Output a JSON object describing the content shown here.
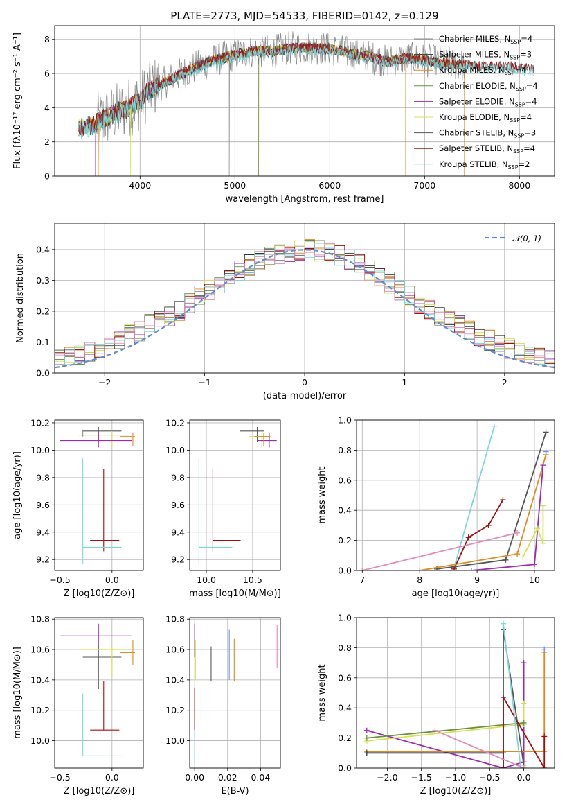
{
  "sup_title": "PLATE=2773, MJD=54533, FIBERID=0142, z=0.129",
  "colors": {
    "Chabrier MILES": "#8c8c8c",
    "Salpeter MILES": "#333333",
    "Kroupa MILES": "#e08a1e",
    "Chabrier ELODIE": "#6a8f3c",
    "Salpeter ELODIE": "#9c2ab0",
    "Kroupa ELODIE": "#d6e050",
    "Chabrier STELIB": "#555555",
    "Salpeter STELIB": "#a01010",
    "Kroupa STELIB": "#7ad8dc",
    "normal": "#5b8bd9",
    "extra_pink": "#e58ab8",
    "extra_blue": "#6f8fe6"
  },
  "chart_data": [
    {
      "id": "spectrum",
      "type": "line",
      "title": "PLATE=2773, MJD=54533, FIBERID=0142, z=0.129",
      "xlabel": "wavelength [Angstrom, rest frame]",
      "ylabel": "Flux [fλ10⁻¹⁷ erg cm⁻² s⁻¹ A⁻¹]",
      "xlim": [
        3100,
        8370
      ],
      "ylim": [
        0,
        8.8
      ],
      "xticks": [
        4000,
        5000,
        6000,
        7000,
        8000
      ],
      "yticks": [
        0,
        2,
        4,
        6,
        8
      ],
      "grid": true,
      "legend_position": "right",
      "legend": [
        "Chabrier MILES, N_SSP=4",
        "Salpeter MILES, N_SSP=3",
        "Kroupa MILES, N_SSP=4",
        "Chabrier ELODIE, N_SSP=4",
        "Salpeter ELODIE, N_SSP=4",
        "Kroupa ELODIE, N_SSP=4",
        "Chabrier STELIB, N_SSP=3",
        "Salpeter STELIB, N_SSP=4",
        "Kroupa STELIB, N_SSP=2"
      ],
      "continuum": [
        [
          3350,
          2.8
        ],
        [
          3500,
          3.0
        ],
        [
          3600,
          3.3
        ],
        [
          3700,
          3.6
        ],
        [
          3800,
          3.8
        ],
        [
          3900,
          4.1
        ],
        [
          4000,
          4.4
        ],
        [
          4100,
          5.1
        ],
        [
          4200,
          5.3
        ],
        [
          4300,
          5.6
        ],
        [
          4400,
          5.9
        ],
        [
          4600,
          6.4
        ],
        [
          4800,
          6.8
        ],
        [
          5000,
          7.1
        ],
        [
          5200,
          7.3
        ],
        [
          5400,
          7.3
        ],
        [
          5600,
          7.5
        ],
        [
          5800,
          7.5
        ],
        [
          6000,
          7.45
        ],
        [
          6200,
          7.2
        ],
        [
          6400,
          7.0
        ],
        [
          6600,
          6.7
        ],
        [
          6800,
          6.9
        ],
        [
          7000,
          6.8
        ],
        [
          7200,
          6.6
        ],
        [
          7400,
          6.5
        ],
        [
          7600,
          6.45
        ],
        [
          7800,
          6.45
        ],
        [
          8000,
          6.3
        ],
        [
          8150,
          6.3
        ]
      ],
      "dips": [
        [
          3530,
          "Salpeter ELODIE"
        ],
        [
          3560,
          "Kroupa MILES"
        ],
        [
          3600,
          "Chabrier MILES"
        ],
        [
          3900,
          "Kroupa ELODIE"
        ],
        [
          4940,
          "Chabrier MILES"
        ],
        [
          5250,
          "Chabrier ELODIE"
        ],
        [
          6800,
          "Kroupa MILES"
        ],
        [
          7420,
          "Kroupa MILES"
        ]
      ]
    },
    {
      "id": "residuals",
      "type": "line",
      "xlabel": "(data-model)/error",
      "ylabel": "Normed distribution",
      "xlim": [
        -2.5,
        2.5
      ],
      "ylim": [
        0,
        0.485
      ],
      "xticks": [
        -2,
        -1,
        0,
        1,
        2
      ],
      "yticks": [
        0.0,
        0.1,
        0.2,
        0.3,
        0.4
      ],
      "grid": true,
      "legend_position": "top-right",
      "legend": [
        "𝒩(0, 1)"
      ],
      "bin_width": 0.1
    },
    {
      "id": "age_vs_Z",
      "type": "scatter",
      "xlabel": "Z [log10(Z/Z⊙)]",
      "ylabel": "age  [log10(age/yr)]",
      "xlim": [
        -0.55,
        0.3
      ],
      "ylim": [
        9.12,
        10.22
      ],
      "xticks": [
        -0.5,
        0.0
      ],
      "yticks": [
        9.2,
        9.4,
        9.6,
        9.8,
        10.0,
        10.2
      ],
      "grid": true,
      "points": [
        {
          "model": "Chabrier STELIB",
          "x": -0.13,
          "xerr": [
            0.15,
            0.22
          ],
          "y": 10.14,
          "yerr": [
            0.08,
            0.03
          ]
        },
        {
          "model": "Kroupa ELODIE",
          "x": 0.0,
          "xerr": [
            0.32,
            0.17
          ],
          "y": 10.11,
          "yerr": [
            0.08,
            0.03
          ]
        },
        {
          "model": "Salpeter ELODIE",
          "x": -0.13,
          "xerr": [
            0.37,
            0.32
          ],
          "y": 10.07,
          "yerr": [
            0.05,
            0.06
          ]
        },
        {
          "model": "Kroupa MILES",
          "x": 0.2,
          "xerr": [
            0.12,
            0.02
          ],
          "y": 10.1,
          "yerr": [
            0.07,
            0.03
          ]
        },
        {
          "model": "Salpeter STELIB",
          "x": -0.08,
          "xerr": [
            0.13,
            0.15
          ],
          "y": 9.34,
          "yerr": [
            0.08,
            0.52
          ]
        },
        {
          "model": "Kroupa STELIB",
          "x": -0.28,
          "xerr": [
            0.0,
            0.37
          ],
          "y": 9.29,
          "yerr": [
            0.12,
            0.65
          ]
        },
        {
          "model": "Chabrier MILES",
          "x": -0.28,
          "xerr": [
            0.0,
            0.0
          ],
          "y": 10.15,
          "yerr": [
            0.05,
            0.0
          ]
        }
      ]
    },
    {
      "id": "age_vs_mass",
      "type": "scatter",
      "xlabel": "mass [log10(M/M⊙)]",
      "xlim": [
        9.82,
        10.8
      ],
      "ylim": [
        9.12,
        10.22
      ],
      "xticks": [
        10.0,
        10.5
      ],
      "yticks": [
        9.2,
        9.4,
        9.6,
        9.8,
        10.0,
        10.2
      ],
      "grid": true,
      "points": [
        {
          "model": "Chabrier STELIB",
          "x": 10.55,
          "xerr": [
            0.19,
            0.07
          ],
          "y": 10.14,
          "yerr": [
            0.08,
            0.03
          ]
        },
        {
          "model": "Kroupa ELODIE",
          "x": 10.6,
          "xerr": [
            0.14,
            0.1
          ],
          "y": 10.1,
          "yerr": [
            0.08,
            0.03
          ]
        },
        {
          "model": "Salpeter ELODIE",
          "x": 10.68,
          "xerr": [
            0.12,
            0.08
          ],
          "y": 10.07,
          "yerr": [
            0.05,
            0.06
          ]
        },
        {
          "model": "Kroupa MILES",
          "x": 10.62,
          "xerr": [
            0.1,
            0.07
          ],
          "y": 10.1,
          "yerr": [
            0.07,
            0.03
          ]
        },
        {
          "model": "Salpeter STELIB",
          "x": 10.07,
          "xerr": [
            0.0,
            0.3
          ],
          "y": 9.34,
          "yerr": [
            0.08,
            0.52
          ]
        },
        {
          "model": "Kroupa STELIB",
          "x": 9.92,
          "xerr": [
            0.0,
            0.36
          ],
          "y": 9.29,
          "yerr": [
            0.12,
            0.65
          ]
        }
      ]
    },
    {
      "id": "mass_weight_vs_age",
      "type": "line",
      "xlabel": "age  [log10(age/yr)]",
      "ylabel": "mass weight",
      "xlim": [
        6.9,
        10.35
      ],
      "ylim": [
        0,
        1.0
      ],
      "xticks": [
        7,
        8,
        9,
        10
      ],
      "yticks": [
        0.0,
        0.2,
        0.4,
        0.6,
        0.8,
        1.0
      ],
      "grid": true,
      "series": [
        {
          "model": "Kroupa STELIB",
          "x": [
            8.6,
            9.3
          ],
          "y": [
            0.02,
            0.96
          ]
        },
        {
          "model": "Salpeter STELIB",
          "x": [
            8.6,
            8.85,
            9.2,
            9.45
          ],
          "y": [
            0.01,
            0.22,
            0.3,
            0.47
          ]
        },
        {
          "model": "Chabrier STELIB",
          "x": [
            8.3,
            9.5,
            10.2
          ],
          "y": [
            0.01,
            0.07,
            0.92
          ]
        },
        {
          "model": "Kroupa MILES",
          "x": [
            8.0,
            9.7,
            10.2
          ],
          "y": [
            0.0,
            0.11,
            0.77
          ]
        },
        {
          "model": "Salpeter ELODIE",
          "x": [
            8.9,
            10.0,
            10.15
          ],
          "y": [
            0.0,
            0.04,
            0.7
          ]
        },
        {
          "model": "Kroupa ELODIE",
          "x": [
            9.8,
            10.05,
            10.15,
            10.15
          ],
          "y": [
            0.09,
            0.28,
            0.18,
            0.43
          ]
        },
        {
          "model": "extra_pink",
          "x": [
            7.0,
            9.7
          ],
          "y": [
            0.0,
            0.25
          ]
        },
        {
          "model": "extra_blue",
          "x": [
            10.2
          ],
          "y": [
            0.79
          ]
        }
      ]
    },
    {
      "id": "mass_vs_Z",
      "type": "scatter",
      "xlabel": "Z [log10(Z/Z⊙)]",
      "ylabel": "mass [log10(M/M⊙)]",
      "xlim": [
        -0.55,
        0.3
      ],
      "ylim": [
        9.82,
        10.81
      ],
      "xticks": [
        -0.5,
        0.0
      ],
      "yticks": [
        10.0,
        10.2,
        10.4,
        10.6,
        10.8
      ],
      "grid": true,
      "points": [
        {
          "model": "Salpeter ELODIE",
          "x": -0.13,
          "xerr": [
            0.37,
            0.32
          ],
          "y": 10.69,
          "yerr": [
            0.08,
            0.08
          ]
        },
        {
          "model": "Chabrier STELIB",
          "x": -0.13,
          "xerr": [
            0.15,
            0.22
          ],
          "y": 10.55,
          "yerr": [
            0.21,
            0.07
          ]
        },
        {
          "model": "Kroupa ELODIE",
          "x": 0.0,
          "xerr": [
            0.32,
            0.17
          ],
          "y": 10.6,
          "yerr": [
            0.18,
            0.02
          ]
        },
        {
          "model": "Kroupa MILES",
          "x": 0.2,
          "xerr": [
            0.12,
            0.02
          ],
          "y": 10.58,
          "yerr": [
            0.08,
            0.08
          ]
        },
        {
          "model": "Salpeter STELIB",
          "x": -0.08,
          "xerr": [
            0.13,
            0.15
          ],
          "y": 10.07,
          "yerr": [
            0.0,
            0.32
          ]
        },
        {
          "model": "Kroupa STELIB",
          "x": -0.28,
          "xerr": [
            0.0,
            0.37
          ],
          "y": 9.9,
          "yerr": [
            0.0,
            0.41
          ]
        }
      ]
    },
    {
      "id": "mass_vs_ebv",
      "type": "scatter",
      "xlabel": "E(B-V)",
      "xlim": [
        -0.003,
        0.052
      ],
      "ylim": [
        9.82,
        10.81
      ],
      "xticks": [
        0.0,
        0.02,
        0.04
      ],
      "yticks": [
        10.0,
        10.2,
        10.4,
        10.6,
        10.8
      ],
      "grid": true,
      "segments": [
        {
          "model": "Salpeter ELODIE",
          "x": 0.0,
          "y": [
            10.55,
            10.77
          ]
        },
        {
          "model": "Kroupa ELODIE",
          "x": 0.0005,
          "y": [
            10.4,
            10.66
          ]
        },
        {
          "model": "Kroupa STELIB",
          "x": 0.0,
          "y": [
            9.85,
            10.31
          ]
        },
        {
          "model": "Salpeter STELIB",
          "x": 0.0,
          "y": [
            10.07,
            10.35
          ]
        },
        {
          "model": "Chabrier STELIB",
          "x": 0.01,
          "y": [
            10.39,
            10.62
          ]
        },
        {
          "model": "extra_blue",
          "x": 0.021,
          "y": [
            10.4,
            10.73
          ]
        },
        {
          "model": "Kroupa MILES",
          "x": 0.024,
          "y": [
            10.39,
            10.67
          ]
        },
        {
          "model": "extra_pink",
          "x": 0.05,
          "y": [
            10.48,
            10.76
          ]
        }
      ]
    },
    {
      "id": "mass_weight_vs_Z",
      "type": "line",
      "xlabel": "Z [log10(Z/Z⊙)]",
      "ylabel": "mass weight",
      "xlim": [
        -2.45,
        0.45
      ],
      "ylim": [
        0,
        1.0
      ],
      "xticks": [
        -2.0,
        -1.5,
        -1.0,
        -0.5,
        0.0
      ],
      "yticks": [
        0.0,
        0.2,
        0.4,
        0.6,
        0.8,
        1.0
      ],
      "grid": true,
      "series": [
        {
          "model": "Salpeter ELODIE",
          "x": [
            -2.3,
            -0.3,
            0.0,
            0.0
          ],
          "y": [
            0.25,
            0.0,
            0.04,
            0.7
          ]
        },
        {
          "model": "Kroupa ELODIE",
          "x": [
            -2.3,
            0.0,
            0.0
          ],
          "y": [
            0.18,
            0.29,
            0.43
          ]
        },
        {
          "model": "Chabrier ELODIE",
          "x": [
            -2.3,
            0.0
          ],
          "y": [
            0.2,
            0.3
          ]
        },
        {
          "model": "Kroupa MILES",
          "x": [
            -2.3,
            0.3,
            0.3
          ],
          "y": [
            0.11,
            0.11,
            0.77
          ]
        },
        {
          "model": "Salpeter MILES",
          "x": [
            -2.3,
            -0.3
          ],
          "y": [
            0.1,
            0.1
          ]
        },
        {
          "model": "Chabrier STELIB",
          "x": [
            -0.3,
            -0.3,
            0.0
          ],
          "y": [
            0.0,
            0.92,
            0.02
          ]
        },
        {
          "model": "Salpeter STELIB",
          "x": [
            -0.3,
            -0.3,
            0.3,
            0.3
          ],
          "y": [
            0.0,
            0.47,
            0.0,
            0.21
          ]
        },
        {
          "model": "Kroupa STELIB",
          "x": [
            -0.3,
            -0.05
          ],
          "y": [
            0.96,
            0.02
          ]
        },
        {
          "model": "extra_pink",
          "x": [
            -1.3,
            0.0
          ],
          "y": [
            0.25,
            0.0
          ]
        },
        {
          "model": "extra_blue",
          "x": [
            0.3
          ],
          "y": [
            0.79
          ]
        }
      ]
    }
  ]
}
